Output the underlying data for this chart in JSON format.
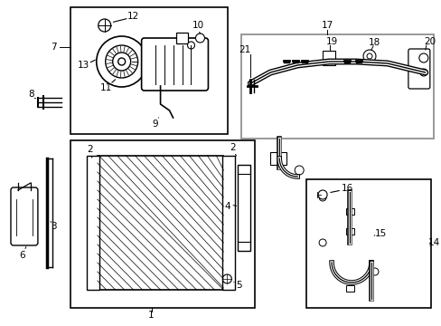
{
  "bg_color": "#ffffff",
  "line_color": "#000000",
  "box_color": "#888888",
  "fig_width": 4.89,
  "fig_height": 3.6,
  "dpi": 100
}
